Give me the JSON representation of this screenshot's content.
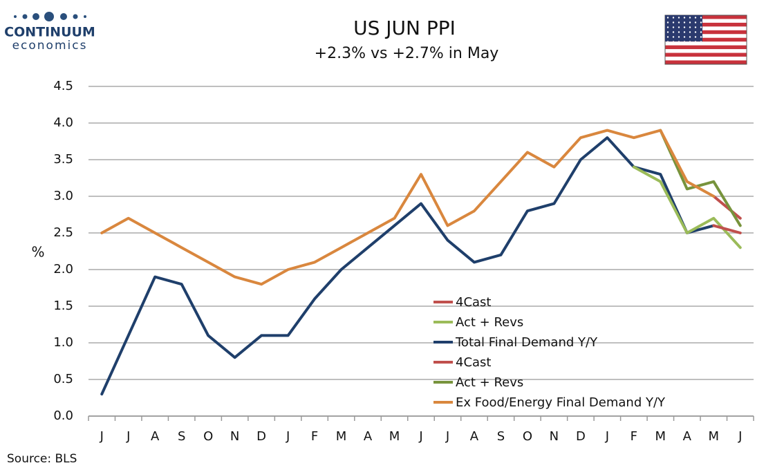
{
  "logo": {
    "name": "CONTINUUM",
    "tagline": "economics"
  },
  "source": "Source: BLS",
  "chart_data": {
    "type": "line",
    "title": "US JUN PPI",
    "subtitle": "+2.3% vs +2.7% in May",
    "y_label": "%",
    "categories": [
      "J",
      "J",
      "A",
      "S",
      "O",
      "N",
      "D",
      "J",
      "F",
      "M",
      "A",
      "M",
      "J",
      "J",
      "A",
      "S",
      "O",
      "N",
      "D",
      "J",
      "F",
      "M",
      "A",
      "M",
      "J"
    ],
    "ylim": [
      0,
      4.5
    ],
    "yticks": [
      {
        "value": 0,
        "label": "0.0"
      },
      0.5,
      {
        "value": 1,
        "label": "1.0"
      },
      1.5,
      {
        "value": 2,
        "label": "2.0"
      },
      2.5,
      {
        "value": 3,
        "label": "3.0"
      },
      3.5,
      {
        "value": 4,
        "label": "4.0"
      },
      4.5
    ],
    "grid": true,
    "series": [
      {
        "name": "4Cast",
        "color": "#c0504d",
        "values": [
          null,
          null,
          null,
          null,
          null,
          null,
          null,
          null,
          null,
          null,
          null,
          null,
          null,
          null,
          null,
          null,
          null,
          null,
          null,
          null,
          null,
          null,
          null,
          2.6,
          2.5
        ]
      },
      {
        "name": "Act + Revs",
        "color": "#9bbb59",
        "values": [
          null,
          null,
          null,
          null,
          null,
          null,
          null,
          null,
          null,
          null,
          null,
          null,
          null,
          null,
          null,
          null,
          null,
          null,
          null,
          null,
          3.4,
          3.2,
          2.5,
          2.7,
          2.3
        ]
      },
      {
        "name": "Total Final Demand Y/Y",
        "color": "#1f3f6b",
        "values": [
          0.3,
          1.1,
          1.9,
          1.8,
          1.1,
          0.8,
          1.1,
          1.1,
          1.6,
          2.0,
          2.3,
          2.6,
          2.9,
          2.4,
          2.1,
          2.2,
          2.8,
          2.9,
          3.5,
          3.8,
          3.4,
          3.3,
          2.5,
          2.6,
          null
        ]
      },
      {
        "name": "4Cast",
        "color": "#c0504d",
        "values": [
          null,
          null,
          null,
          null,
          null,
          null,
          null,
          null,
          null,
          null,
          null,
          null,
          null,
          null,
          null,
          null,
          null,
          null,
          null,
          null,
          null,
          null,
          null,
          3.0,
          2.7
        ]
      },
      {
        "name": "Act + Revs",
        "color": "#77933c",
        "values": [
          null,
          null,
          null,
          null,
          null,
          null,
          null,
          null,
          null,
          null,
          null,
          null,
          null,
          null,
          null,
          null,
          null,
          null,
          null,
          null,
          null,
          3.9,
          3.1,
          3.2,
          2.6
        ]
      },
      {
        "name": "Ex Food/Energy Final Demand Y/Y",
        "color": "#d9873e",
        "values": [
          2.5,
          2.7,
          2.5,
          2.3,
          2.1,
          1.9,
          1.8,
          2.0,
          2.1,
          2.3,
          2.5,
          2.7,
          3.3,
          2.6,
          2.8,
          3.2,
          3.6,
          3.4,
          3.8,
          3.9,
          3.8,
          3.9,
          3.2,
          3.0,
          null
        ]
      }
    ]
  }
}
